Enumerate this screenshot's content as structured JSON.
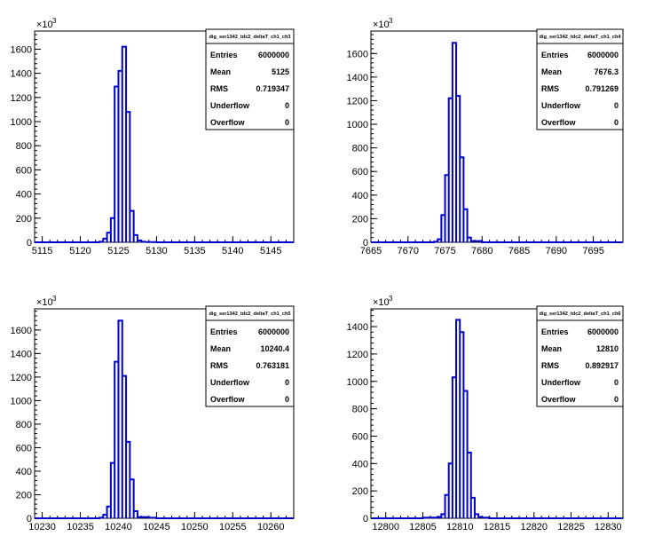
{
  "chart_data": [
    {
      "type": "histogram",
      "title": "",
      "multiplier_label": "×10",
      "multiplier_exp": "3",
      "color": "#0000cc",
      "xlim": [
        5114,
        5148
      ],
      "xticks": [
        "5115",
        "5120",
        "5125",
        "5130",
        "5135",
        "5140",
        "5145"
      ],
      "ylim": [
        0,
        1750
      ],
      "yticks": [
        "0",
        "200",
        "400",
        "600",
        "800",
        "1000",
        "1200",
        "1400",
        "1600"
      ],
      "bins": [
        [
          5122.5,
          5123,
          5
        ],
        [
          5123,
          5123.5,
          30
        ],
        [
          5123.5,
          5124,
          80
        ],
        [
          5124,
          5124.5,
          200
        ],
        [
          5124.5,
          5125,
          1290
        ],
        [
          5125,
          5125.5,
          1420
        ],
        [
          5125.5,
          5126,
          1620
        ],
        [
          5126,
          5126.5,
          1080
        ],
        [
          5126.5,
          5127,
          260
        ],
        [
          5127,
          5127.5,
          60
        ],
        [
          5127.5,
          5128,
          15
        ],
        [
          5128,
          5128.5,
          5
        ],
        [
          5128.5,
          5129,
          2
        ],
        [
          5129,
          5130,
          2
        ]
      ],
      "stats": {
        "name": "dig_ser1342_tdc2_deltaT_ch1_ch3",
        "rows": [
          [
            "Entries",
            "6000000"
          ],
          [
            "Mean",
            "5125"
          ],
          [
            "RMS",
            "0.719347"
          ],
          [
            "Underflow",
            "0"
          ],
          [
            "Overflow",
            "0"
          ]
        ]
      }
    },
    {
      "type": "histogram",
      "title": "",
      "multiplier_label": "×10",
      "multiplier_exp": "3",
      "color": "#0000cc",
      "xlim": [
        7665,
        7699
      ],
      "xticks": [
        "7665",
        "7670",
        "7675",
        "7680",
        "7685",
        "7690",
        "7695"
      ],
      "ylim": [
        0,
        1790
      ],
      "yticks": [
        "0",
        "200",
        "400",
        "600",
        "800",
        "1000",
        "1200",
        "1400",
        "1600"
      ],
      "bins": [
        [
          7673.5,
          7674,
          5
        ],
        [
          7674,
          7674.5,
          25
        ],
        [
          7674.5,
          7675,
          230
        ],
        [
          7675,
          7675.5,
          570
        ],
        [
          7675.5,
          7676,
          1220
        ],
        [
          7676,
          7676.5,
          1690
        ],
        [
          7676.5,
          7677,
          1240
        ],
        [
          7677,
          7677.5,
          720
        ],
        [
          7677.5,
          7678,
          280
        ],
        [
          7678,
          7678.5,
          40
        ],
        [
          7678.5,
          7679,
          10
        ],
        [
          7679,
          7680,
          10
        ]
      ],
      "stats": {
        "name": "dig_ser1342_tdc2_deltaT_ch1_ch4",
        "rows": [
          [
            "Entries",
            "6000000"
          ],
          [
            "Mean",
            "7676.3"
          ],
          [
            "RMS",
            "0.791269"
          ],
          [
            "Underflow",
            "0"
          ],
          [
            "Overflow",
            "0"
          ]
        ]
      }
    },
    {
      "type": "histogram",
      "title": "",
      "multiplier_label": "×10",
      "multiplier_exp": "3",
      "color": "#0000cc",
      "xlim": [
        10229,
        10263
      ],
      "xticks": [
        "10230",
        "10235",
        "10240",
        "10245",
        "10250",
        "10255",
        "10260"
      ],
      "ylim": [
        0,
        1780
      ],
      "yticks": [
        "0",
        "200",
        "400",
        "600",
        "800",
        "1000",
        "1200",
        "1400",
        "1600"
      ],
      "bins": [
        [
          10237.5,
          10238,
          5
        ],
        [
          10238,
          10238.5,
          30
        ],
        [
          10238.5,
          10239,
          100
        ],
        [
          10239,
          10239.5,
          470
        ],
        [
          10239.5,
          10240,
          1330
        ],
        [
          10240,
          10240.5,
          1680
        ],
        [
          10240.5,
          10241,
          1210
        ],
        [
          10241,
          10241.5,
          650
        ],
        [
          10241.5,
          10242,
          330
        ],
        [
          10242,
          10242.5,
          60
        ],
        [
          10242.5,
          10243,
          10
        ],
        [
          10243,
          10244,
          10
        ],
        [
          10244,
          10245,
          5
        ]
      ],
      "stats": {
        "name": "dig_ser1342_tdc2_deltaT_ch1_ch5",
        "rows": [
          [
            "Entries",
            "6000000"
          ],
          [
            "Mean",
            "10240.4"
          ],
          [
            "RMS",
            "0.763181"
          ],
          [
            "Underflow",
            "0"
          ],
          [
            "Overflow",
            "0"
          ]
        ]
      }
    },
    {
      "type": "histogram",
      "title": "",
      "multiplier_label": "×10",
      "multiplier_exp": "3",
      "color": "#0000cc",
      "xlim": [
        12798,
        12832
      ],
      "xticks": [
        "12800",
        "12805",
        "12810",
        "12815",
        "12820",
        "12825",
        "12830"
      ],
      "ylim": [
        0,
        1530
      ],
      "yticks": [
        "0",
        "200",
        "400",
        "600",
        "800",
        "1000",
        "1200",
        "1400"
      ],
      "bins": [
        [
          12805,
          12807,
          5
        ],
        [
          12807,
          12807.5,
          10
        ],
        [
          12807.5,
          12808,
          30
        ],
        [
          12808,
          12808.5,
          170
        ],
        [
          12808.5,
          12809,
          400
        ],
        [
          12809,
          12809.5,
          1030
        ],
        [
          12809.5,
          12810,
          1450
        ],
        [
          12810,
          12810.5,
          1360
        ],
        [
          12810.5,
          12811,
          930
        ],
        [
          12811,
          12811.5,
          480
        ],
        [
          12811.5,
          12812,
          150
        ],
        [
          12812,
          12812.5,
          30
        ],
        [
          12812.5,
          12813,
          10
        ],
        [
          12813,
          12814,
          5
        ]
      ],
      "stats": {
        "name": "dig_ser1342_tdc2_deltaT_ch1_ch6",
        "rows": [
          [
            "Entries",
            "6000000"
          ],
          [
            "Mean",
            "12810"
          ],
          [
            "RMS",
            "0.892917"
          ],
          [
            "Underflow",
            "0"
          ],
          [
            "Overflow",
            "0"
          ]
        ]
      }
    }
  ]
}
